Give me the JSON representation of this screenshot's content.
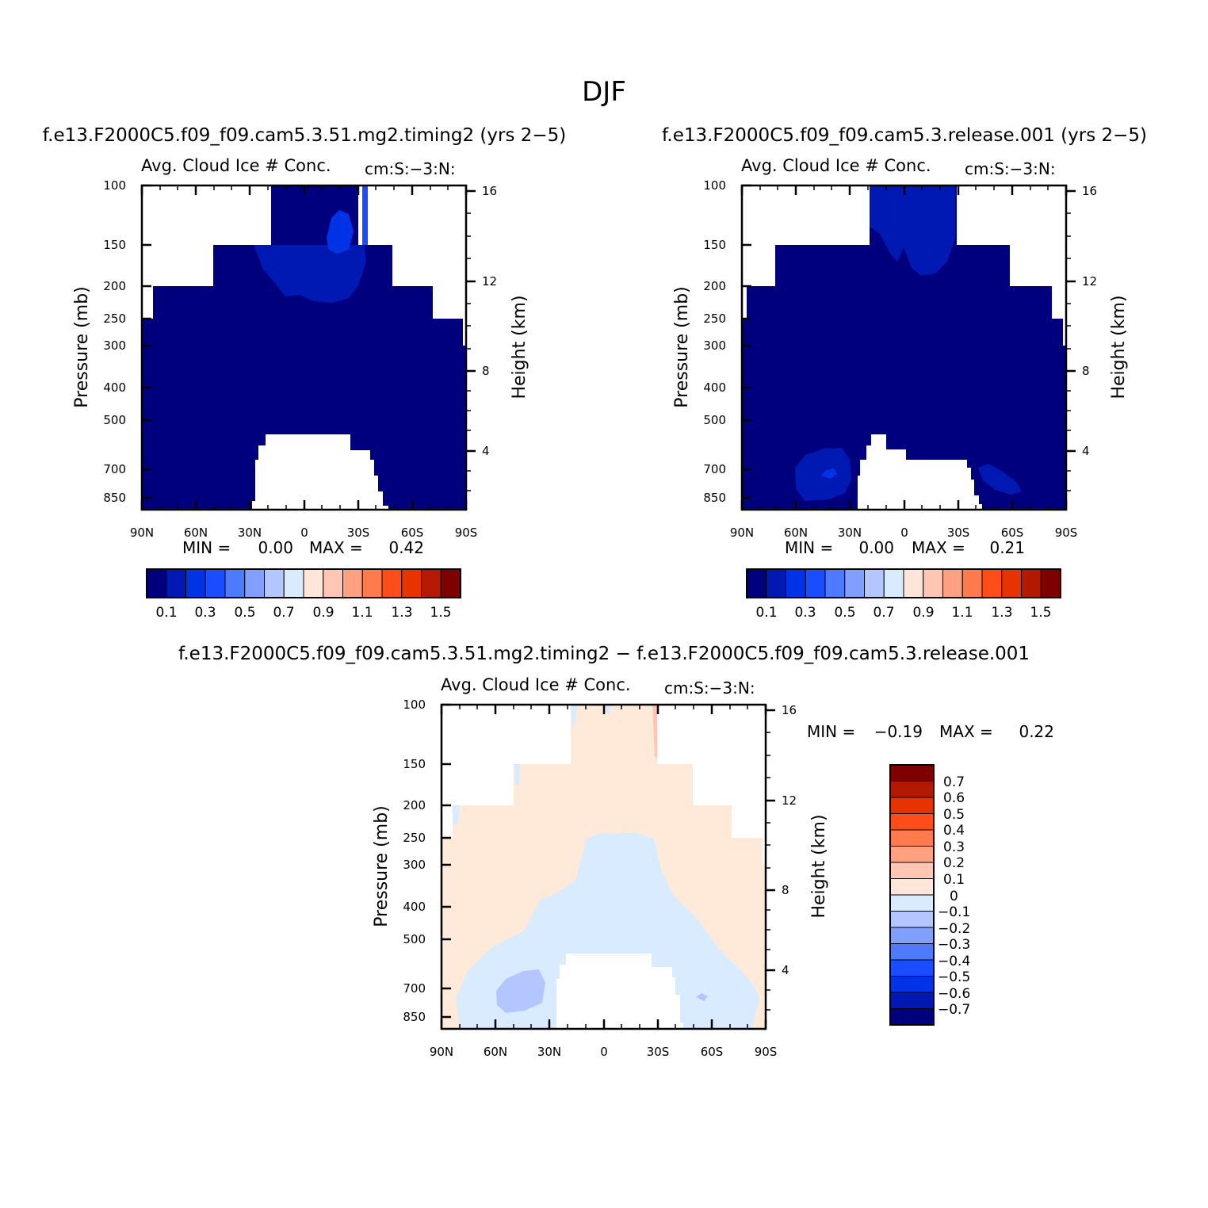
{
  "title": "DJF",
  "palette": {
    "seq": [
      "#00007f",
      "#0019b3",
      "#0033e6",
      "#1a4dff",
      "#4d7aff",
      "#809fff",
      "#b3c6ff",
      "#d9ebff",
      "#ffe6d9",
      "#ffc6b3",
      "#ffa080",
      "#ff7a4d",
      "#ff4d1a",
      "#e63300",
      "#b31900",
      "#7f0000"
    ],
    "diff": [
      "#ffe9d9",
      "#d9ebff",
      "#b3c6ff",
      "#809fff"
    ]
  },
  "chart_data": [
    {
      "type": "heatmap",
      "panel": "top-left",
      "case_title": "f.e13.F2000C5.f09_f09.cam5.3.51.mg2.timing2 (yrs 2−5)",
      "var_label": "Avg. Cloud Ice # Conc.",
      "units_label": "cm:S:−3:N:",
      "ylabel": "Pressure (mb)",
      "ylabel_right": "Height (km)",
      "x_ticks": [
        "90N",
        "60N",
        "30N",
        "0",
        "30S",
        "60S",
        "90S"
      ],
      "y_ticks": [
        "100",
        "150",
        "200",
        "250",
        "300",
        "400",
        "500",
        "700",
        "850"
      ],
      "y_ticks_right": [
        "16",
        "12",
        "8",
        "4"
      ],
      "ylim": [
        100,
        1000
      ],
      "y_scale": "log",
      "xlim": [
        "90N",
        "90S"
      ],
      "min_label": "MIN =",
      "min_value": "0.00",
      "max_label": "MAX =",
      "max_value": "0.42",
      "colorbar_labels": [
        "0.1",
        "0.3",
        "0.5",
        "0.7",
        "0.9",
        "1.1",
        "1.3",
        "1.5"
      ],
      "colorbar_levels": [
        0.0,
        0.1,
        0.2,
        0.3,
        0.4,
        0.5,
        0.6,
        0.7,
        0.8,
        0.9,
        1.0,
        1.1,
        1.2,
        1.3,
        1.4,
        1.5
      ],
      "field_background": 0.05,
      "field_maximum": 0.42
    },
    {
      "type": "heatmap",
      "panel": "top-right",
      "case_title": "f.e13.F2000C5.f09_f09.cam5.3.release.001 (yrs 2−5)",
      "var_label": "Avg. Cloud Ice # Conc.",
      "units_label": "cm:S:−3:N:",
      "ylabel": "Pressure (mb)",
      "ylabel_right": "Height (km)",
      "x_ticks": [
        "90N",
        "60N",
        "30N",
        "0",
        "30S",
        "60S",
        "90S"
      ],
      "y_ticks": [
        "100",
        "150",
        "200",
        "250",
        "300",
        "400",
        "500",
        "700",
        "850"
      ],
      "y_ticks_right": [
        "16",
        "12",
        "8",
        "4"
      ],
      "ylim": [
        100,
        1000
      ],
      "y_scale": "log",
      "xlim": [
        "90N",
        "90S"
      ],
      "min_label": "MIN =",
      "min_value": "0.00",
      "max_label": "MAX =",
      "max_value": "0.21",
      "colorbar_labels": [
        "0.1",
        "0.3",
        "0.5",
        "0.7",
        "0.9",
        "1.1",
        "1.3",
        "1.5"
      ],
      "colorbar_levels": [
        0.0,
        0.1,
        0.2,
        0.3,
        0.4,
        0.5,
        0.6,
        0.7,
        0.8,
        0.9,
        1.0,
        1.1,
        1.2,
        1.3,
        1.4,
        1.5
      ],
      "field_background": 0.05,
      "field_maximum": 0.21
    },
    {
      "type": "heatmap",
      "panel": "bottom",
      "case_title": "f.e13.F2000C5.f09_f09.cam5.3.51.mg2.timing2 − f.e13.F2000C5.f09_f09.cam5.3.release.001",
      "var_label": "Avg. Cloud Ice # Conc.",
      "units_label": "cm:S:−3:N:",
      "ylabel": "Pressure (mb)",
      "ylabel_right": "Height (km)",
      "x_ticks": [
        "90N",
        "60N",
        "30N",
        "0",
        "30S",
        "60S",
        "90S"
      ],
      "y_ticks": [
        "100",
        "150",
        "200",
        "250",
        "300",
        "400",
        "500",
        "700",
        "850"
      ],
      "y_ticks_right": [
        "16",
        "12",
        "8",
        "4"
      ],
      "ylim": [
        100,
        1000
      ],
      "y_scale": "log",
      "xlim": [
        "90N",
        "90S"
      ],
      "min_label": "MIN =",
      "min_value": "−0.19",
      "max_label": "MAX =",
      "max_value": "0.22",
      "colorbar_labels": [
        "0.7",
        "0.6",
        "0.5",
        "0.4",
        "0.3",
        "0.2",
        "0.1",
        "0",
        "−0.1",
        "−0.2",
        "−0.3",
        "−0.4",
        "−0.5",
        "−0.6",
        "−0.7"
      ],
      "colorbar_levels": [
        -0.7,
        -0.6,
        -0.5,
        -0.4,
        -0.3,
        -0.2,
        -0.1,
        0,
        0.1,
        0.2,
        0.3,
        0.4,
        0.5,
        0.6,
        0.7
      ]
    }
  ]
}
